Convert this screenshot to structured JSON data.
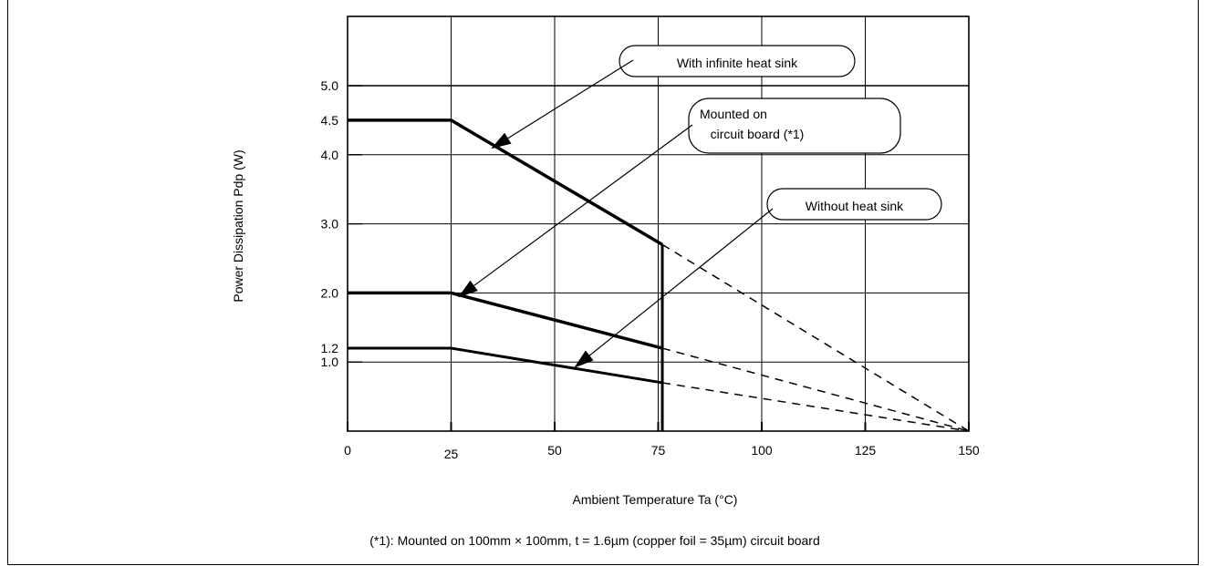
{
  "chart_data": {
    "type": "line",
    "xlabel": "Ambient Temperature Ta (°C)",
    "ylabel": "Power Dissipation Pdp (W)",
    "xlim": [
      0,
      150
    ],
    "ylim": [
      0,
      5.0
    ],
    "x_ticks": [
      0,
      25,
      50,
      75,
      100,
      125,
      150
    ],
    "x_tick_labels": [
      "0",
      "25",
      "50",
      "75",
      "100",
      "125",
      "150"
    ],
    "y_ticks": [
      1.0,
      1.2,
      2.0,
      3.0,
      4.0,
      4.5,
      5.0
    ],
    "y_tick_labels": [
      "1.0",
      "1.2",
      "2.0",
      "3.0",
      "4.0",
      "4.5",
      "5.0"
    ],
    "grid": true,
    "series": [
      {
        "name": "With infinite heat sink",
        "points": [
          [
            0,
            4.5
          ],
          [
            25,
            4.5
          ],
          [
            76,
            2.7
          ]
        ],
        "derating_extension": [
          [
            76,
            2.7
          ],
          [
            150,
            0
          ]
        ],
        "cutoff": [
          [
            76,
            2.7
          ],
          [
            76,
            0
          ]
        ]
      },
      {
        "name": "Mounted on circuit board (*1)",
        "points": [
          [
            0,
            2.0
          ],
          [
            25,
            2.0
          ],
          [
            76,
            1.2
          ]
        ],
        "derating_extension": [
          [
            76,
            1.2
          ],
          [
            150,
            0
          ]
        ]
      },
      {
        "name": "Without heat sink",
        "points": [
          [
            0,
            1.2
          ],
          [
            25,
            1.2
          ],
          [
            76,
            0.7
          ]
        ],
        "derating_extension": [
          [
            76,
            0.7
          ],
          [
            150,
            0
          ]
        ]
      }
    ],
    "callouts": [
      {
        "label_lines": [
          "With infinite heat sink"
        ],
        "target": [
          35,
          4.1
        ]
      },
      {
        "label_lines": [
          "Mounted on",
          " circuit board (*1)"
        ],
        "target": [
          27,
          1.95
        ]
      },
      {
        "label_lines": [
          "Without heat sink"
        ],
        "target": [
          55,
          0.93
        ]
      }
    ],
    "footnote": "(*1): Mounted on 100mm × 100mm, t = 1.6µm (copper foil = 35µm) circuit board"
  }
}
